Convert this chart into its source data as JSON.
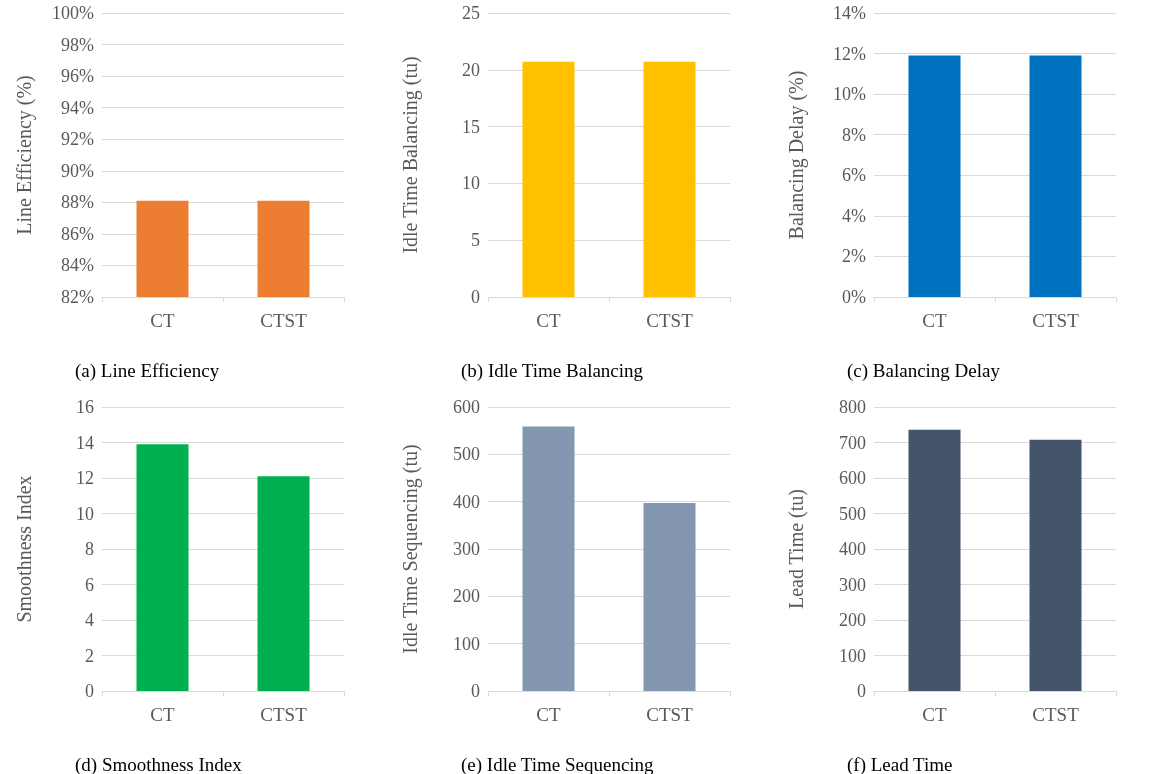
{
  "chart_data": [
    {
      "type": "bar",
      "title": "(a) Line Efficiency",
      "ylabel": "Line Efficiency (%)",
      "categories": [
        "CT",
        "CTST"
      ],
      "values": [
        88.1,
        88.1
      ],
      "color": "#ed7d31",
      "ylim": [
        82,
        100
      ],
      "yticks": [
        {
          "value": 82,
          "label": "82%"
        },
        {
          "value": 84,
          "label": "84%"
        },
        {
          "value": 86,
          "label": "86%"
        },
        {
          "value": 88,
          "label": "88%"
        },
        {
          "value": 90,
          "label": "90%"
        },
        {
          "value": 92,
          "label": "92%"
        },
        {
          "value": 94,
          "label": "94%"
        },
        {
          "value": 96,
          "label": "96%"
        },
        {
          "value": 98,
          "label": "98%"
        },
        {
          "value": 100,
          "label": "100%"
        }
      ],
      "grid": "y"
    },
    {
      "type": "bar",
      "title": "(b) Idle Time Balancing",
      "ylabel": "Idle Time Balancing (tu)",
      "categories": [
        "CT",
        "CTST"
      ],
      "values": [
        20.7,
        20.7
      ],
      "color": "#ffc000",
      "ylim": [
        0,
        25
      ],
      "yticks": [
        0,
        5,
        10,
        15,
        20,
        25
      ],
      "grid": "y"
    },
    {
      "type": "bar",
      "title": "(c) Balancing Delay",
      "ylabel": "Balancing Delay (%)",
      "categories": [
        "CT",
        "CTST"
      ],
      "values": [
        11.9,
        11.9
      ],
      "color": "#0070c0",
      "ylim": [
        0,
        14
      ],
      "yticks": [
        {
          "value": 0,
          "label": "0%"
        },
        {
          "value": 2,
          "label": "2%"
        },
        {
          "value": 4,
          "label": "4%"
        },
        {
          "value": 6,
          "label": "6%"
        },
        {
          "value": 8,
          "label": "8%"
        },
        {
          "value": 10,
          "label": "10%"
        },
        {
          "value": 12,
          "label": "12%"
        },
        {
          "value": 14,
          "label": "14%"
        }
      ],
      "grid": "y"
    },
    {
      "type": "bar",
      "title": "(d) Smoothness Index",
      "ylabel": "Smoothness Index",
      "categories": [
        "CT",
        "CTST"
      ],
      "values": [
        13.9,
        12.1
      ],
      "color": "#00b050",
      "ylim": [
        0,
        16
      ],
      "yticks": [
        0,
        2,
        4,
        6,
        8,
        10,
        12,
        14,
        16
      ],
      "grid": "y"
    },
    {
      "type": "bar",
      "title": "(e) Idle Time Sequencing",
      "ylabel": "Idle Time Sequencing (tu)",
      "categories": [
        "CT",
        "CTST"
      ],
      "values": [
        559,
        397
      ],
      "color": "#8497b0",
      "ylim": [
        0,
        600
      ],
      "yticks": [
        0,
        100,
        200,
        300,
        400,
        500,
        600
      ],
      "grid": "y"
    },
    {
      "type": "bar",
      "title": "(f) Lead Time",
      "ylabel": "Lead Time (tu)",
      "categories": [
        "CT",
        "CTST"
      ],
      "values": [
        736,
        708
      ],
      "color": "#44546a",
      "ylim": [
        0,
        800
      ],
      "yticks": [
        0,
        100,
        200,
        300,
        400,
        500,
        600,
        700,
        800
      ],
      "grid": "y"
    }
  ]
}
